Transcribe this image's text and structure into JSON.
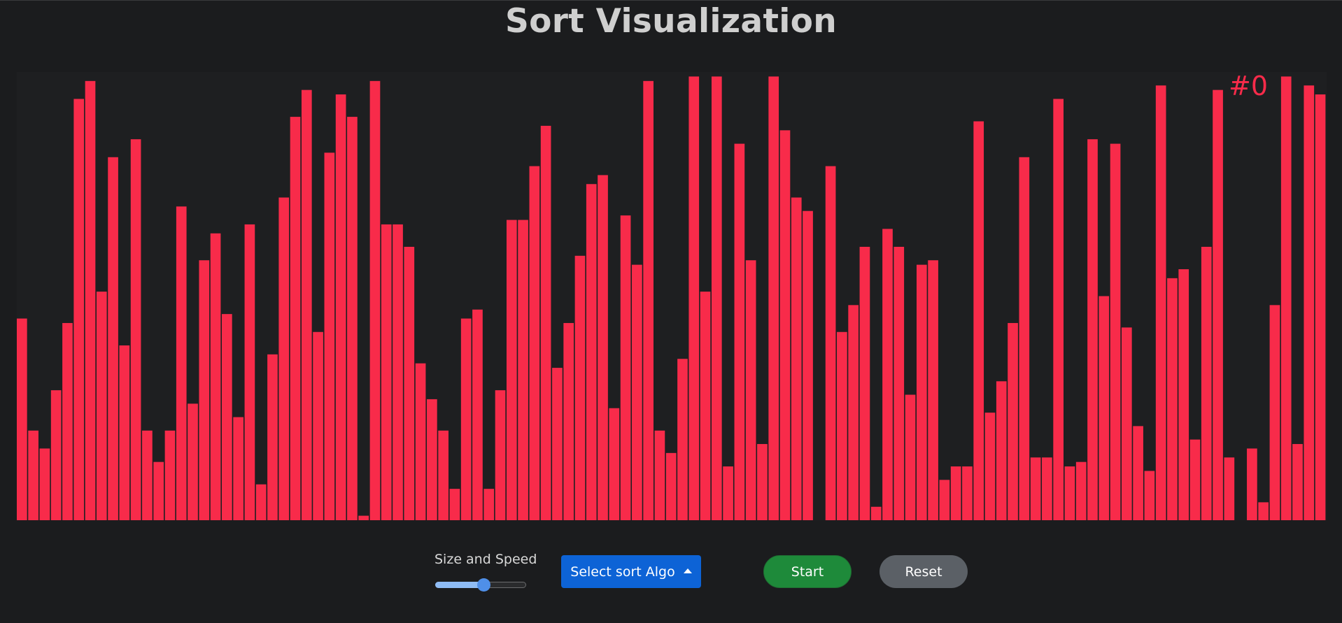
{
  "page": {
    "title": "Sort Visualization",
    "step_counter": "#0"
  },
  "colors": {
    "background": "#1b1c1e",
    "bar": "#f82b4a",
    "counter_text": "#f82b4a",
    "select_button": "#0d63d6",
    "start_button": "#1e8a3a",
    "reset_button": "#5b6066",
    "slider_fill": "#8fbcf5"
  },
  "controls": {
    "slider_label": "Size and Speed",
    "slider_level": 0.53,
    "select_label": "Select sort Algo",
    "select_icon": "caret-up-icon",
    "start_label": "Start",
    "reset_label": "Reset"
  },
  "chart_data": {
    "type": "bar",
    "ylim": [
      0,
      100
    ],
    "values": [
      45,
      20,
      16,
      29,
      44,
      94,
      98,
      51,
      81,
      39,
      85,
      20,
      13,
      20,
      70,
      26,
      58,
      64,
      46,
      23,
      66,
      8,
      37,
      72,
      90,
      96,
      42,
      82,
      95,
      90,
      1,
      98,
      66,
      66,
      61,
      35,
      27,
      20,
      7,
      45,
      47,
      7,
      29,
      67,
      67,
      79,
      88,
      34,
      44,
      59,
      75,
      77,
      25,
      68,
      57,
      98,
      20,
      15,
      36,
      99,
      51,
      99,
      12,
      84,
      58,
      17,
      99,
      87,
      72,
      69,
      0,
      79,
      42,
      48,
      61,
      3,
      65,
      61,
      28,
      57,
      58,
      9,
      12,
      12,
      89,
      24,
      31,
      44,
      81,
      14,
      14,
      94,
      12,
      13,
      85,
      50,
      84,
      43,
      21,
      11,
      97,
      54,
      56,
      18,
      61,
      96,
      14,
      0,
      16,
      4,
      48,
      99,
      17,
      97,
      95
    ]
  }
}
